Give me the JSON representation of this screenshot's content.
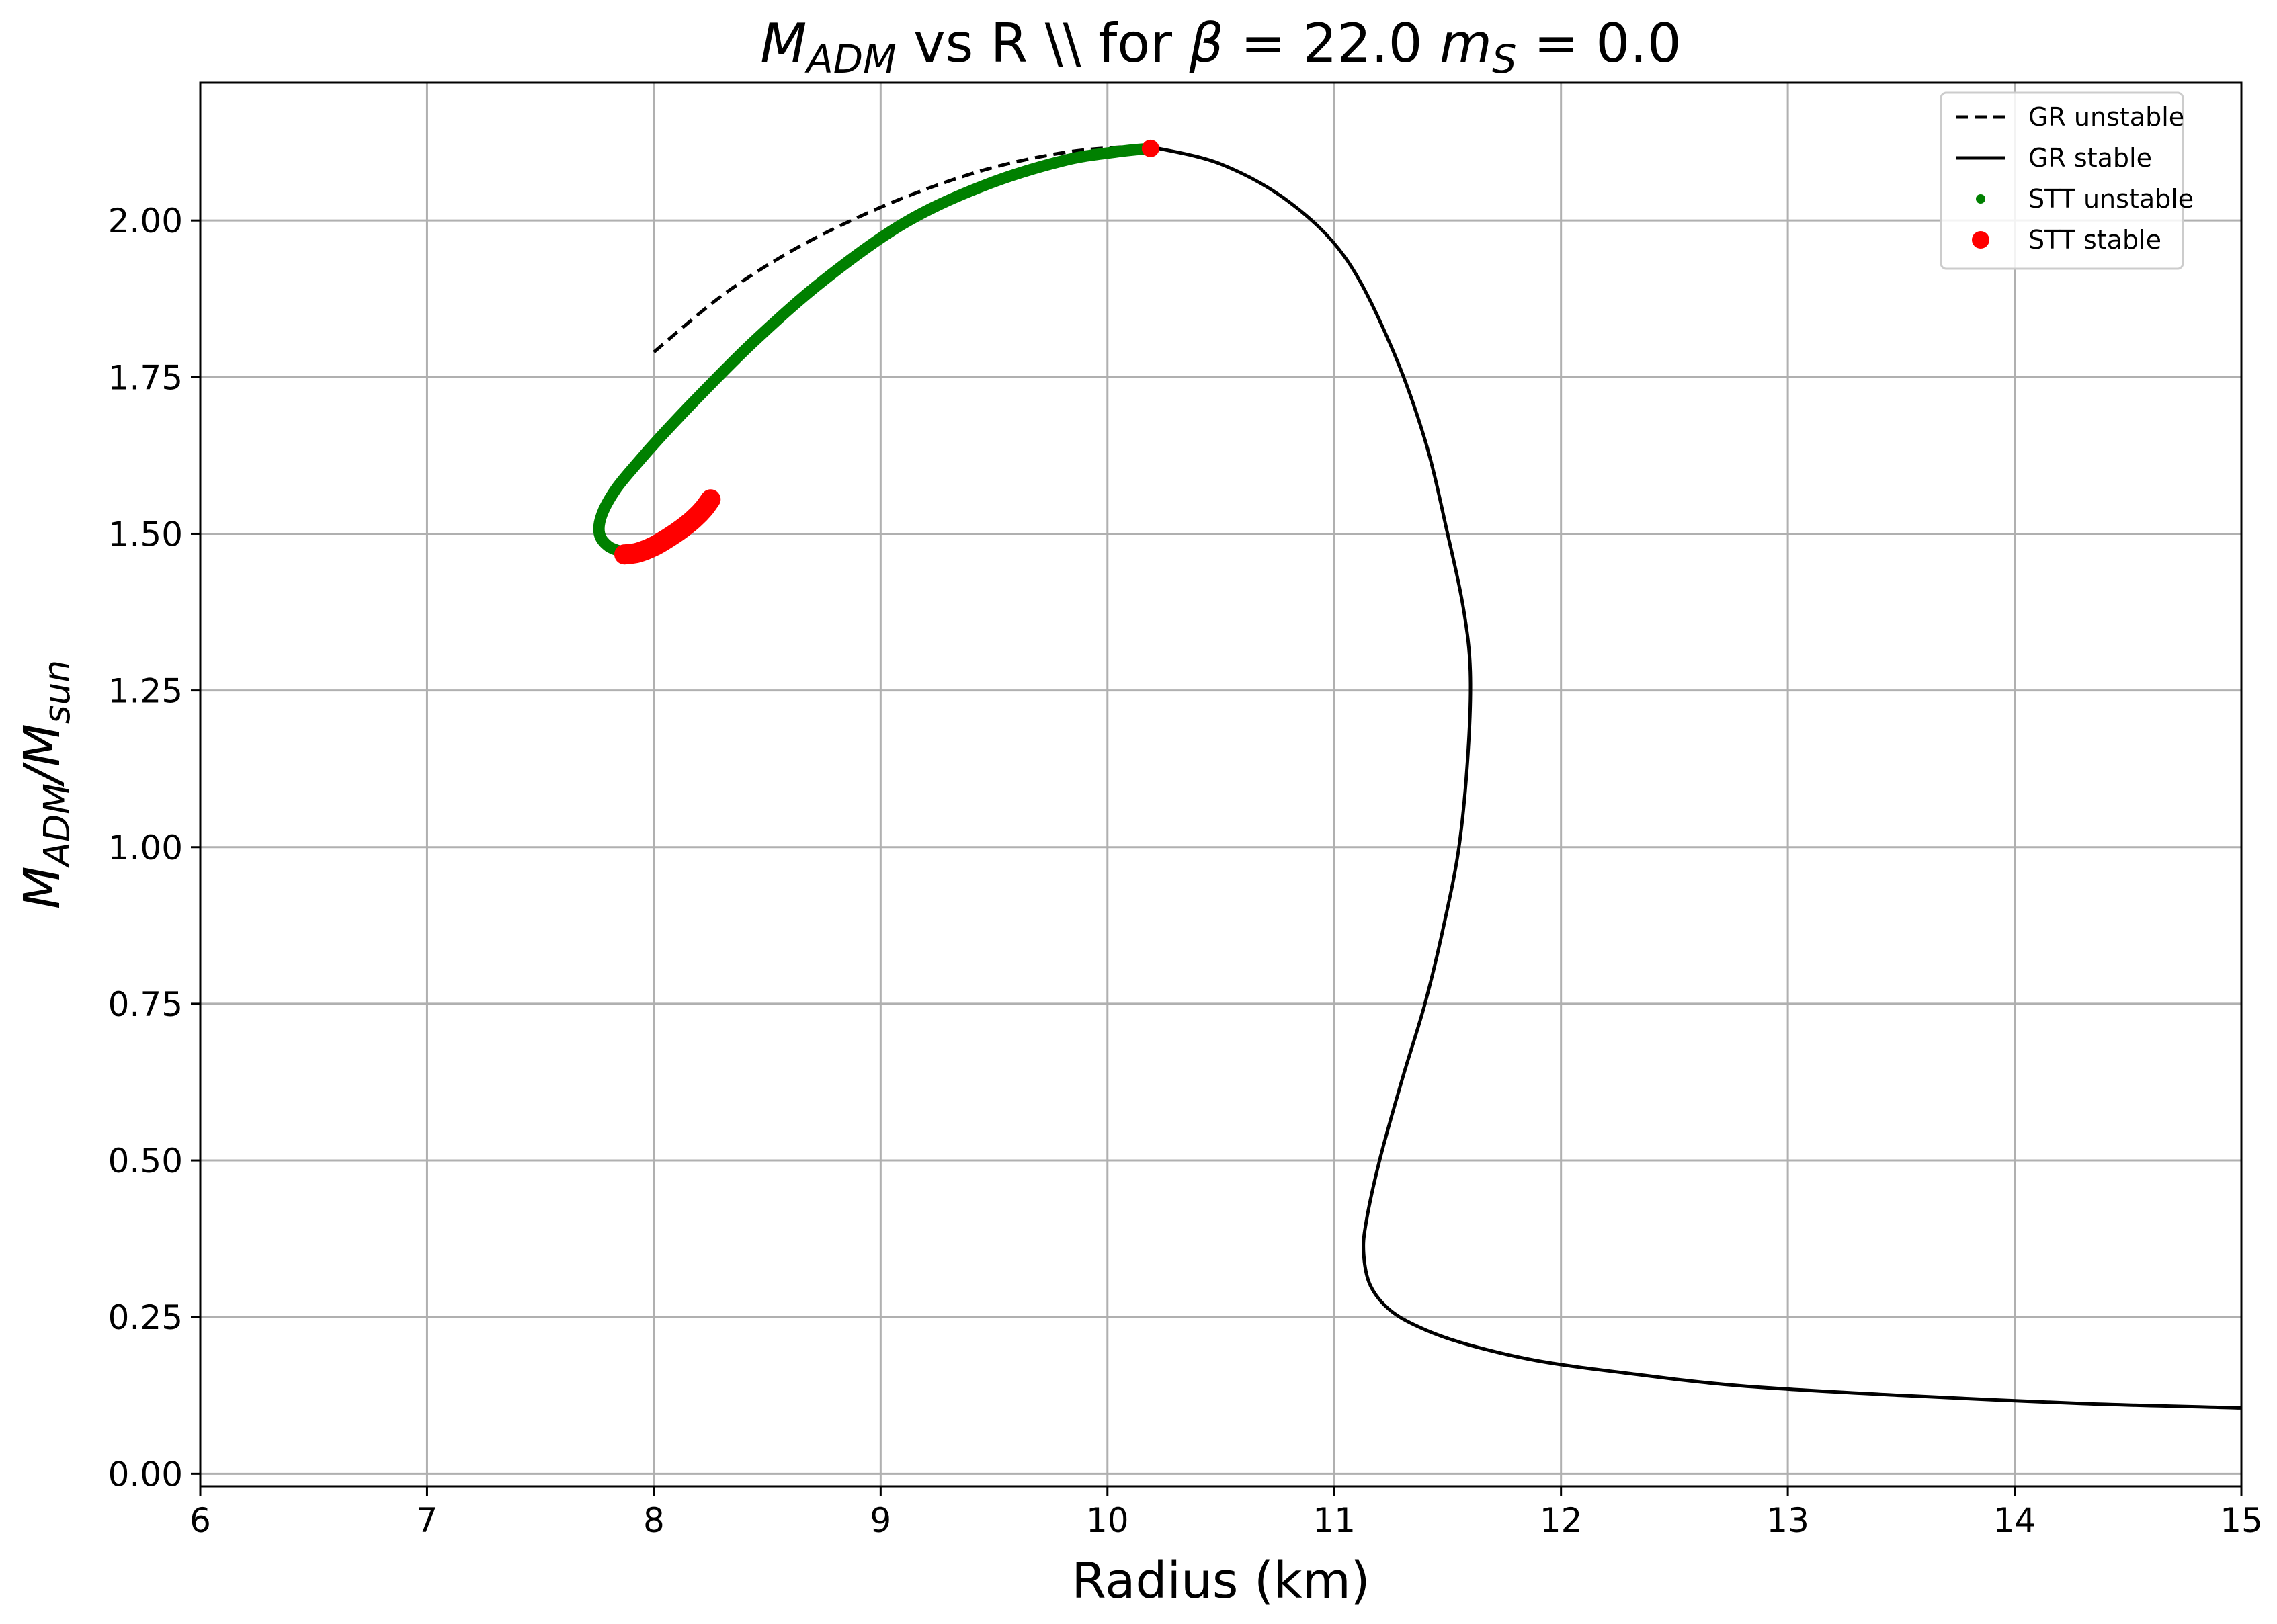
{
  "chart_data": {
    "type": "line",
    "title": {
      "parts": [
        {
          "t": "M",
          "style": "italic"
        },
        {
          "t": "ADM",
          "style": "italic-sub"
        },
        {
          "t": " vs R \\\\ for ",
          "style": "normal"
        },
        {
          "t": "β",
          "style": "italic"
        },
        {
          "t": " = 22.0 ",
          "style": "normal"
        },
        {
          "t": "m",
          "style": "italic"
        },
        {
          "t": "S",
          "style": "italic-sub"
        },
        {
          "t": " = 0.0",
          "style": "normal"
        }
      ]
    },
    "xlabel": "Radius (km)",
    "ylabel": {
      "parts": [
        {
          "t": "M",
          "style": "italic"
        },
        {
          "t": "ADM",
          "style": "italic-sub"
        },
        {
          "t": "/M",
          "style": "italic"
        },
        {
          "t": "sun",
          "style": "italic-sub"
        }
      ]
    },
    "xlim": [
      6,
      15
    ],
    "ylim": [
      -0.02,
      2.22
    ],
    "xticks": [
      6,
      7,
      8,
      9,
      10,
      11,
      12,
      13,
      14,
      15
    ],
    "yticks": [
      0.0,
      0.25,
      0.5,
      0.75,
      1.0,
      1.25,
      1.5,
      1.75,
      2.0
    ],
    "ytick_labels": [
      "0.00",
      "0.25",
      "0.50",
      "0.75",
      "1.00",
      "1.25",
      "1.50",
      "1.75",
      "2.00"
    ],
    "grid": true,
    "legend_position": "top-right",
    "series": [
      {
        "name": "GR unstable",
        "kind": "dashed-line",
        "color": "#000000",
        "x": [
          8.0,
          8.3,
          8.6,
          8.9,
          9.2,
          9.5,
          9.8,
          10.05,
          10.2
        ],
        "y": [
          1.79,
          1.88,
          1.95,
          2.005,
          2.05,
          2.085,
          2.108,
          2.117,
          2.117
        ]
      },
      {
        "name": "GR stable",
        "kind": "line",
        "color": "#000000",
        "x": [
          10.2,
          10.5,
          10.8,
          11.05,
          11.25,
          11.4,
          11.5,
          11.57,
          11.6,
          11.59,
          11.55,
          11.48,
          11.4,
          11.3,
          11.2,
          11.14,
          11.13,
          11.16,
          11.25,
          11.4,
          11.6,
          11.9,
          12.3,
          12.8,
          13.5,
          14.3,
          15.0
        ],
        "y": [
          2.117,
          2.09,
          2.03,
          1.94,
          1.8,
          1.65,
          1.5,
          1.38,
          1.28,
          1.15,
          1.0,
          0.87,
          0.75,
          0.63,
          0.5,
          0.4,
          0.35,
          0.3,
          0.26,
          0.23,
          0.205,
          0.18,
          0.16,
          0.14,
          0.125,
          0.112,
          0.105
        ]
      },
      {
        "name": "STT unstable",
        "kind": "thick-markers",
        "color": "#008000",
        "x": [
          7.87,
          7.8,
          7.76,
          7.77,
          7.83,
          7.92,
          8.03,
          8.2,
          8.45,
          8.75,
          9.1,
          9.45,
          9.8,
          10.05,
          10.19
        ],
        "y": [
          1.47,
          1.48,
          1.5,
          1.53,
          1.57,
          1.61,
          1.655,
          1.72,
          1.81,
          1.905,
          1.995,
          2.055,
          2.095,
          2.11,
          2.115
        ]
      },
      {
        "name": "STT stable",
        "kind": "markers",
        "color": "#ff0000",
        "x": [
          7.87,
          7.93,
          8.0,
          8.07,
          8.13,
          8.18,
          8.22,
          8.25
        ],
        "y": [
          1.467,
          1.47,
          1.48,
          1.495,
          1.51,
          1.525,
          1.54,
          1.555
        ],
        "extra_points": [
          {
            "x": 10.19,
            "y": 2.115
          }
        ]
      }
    ]
  }
}
